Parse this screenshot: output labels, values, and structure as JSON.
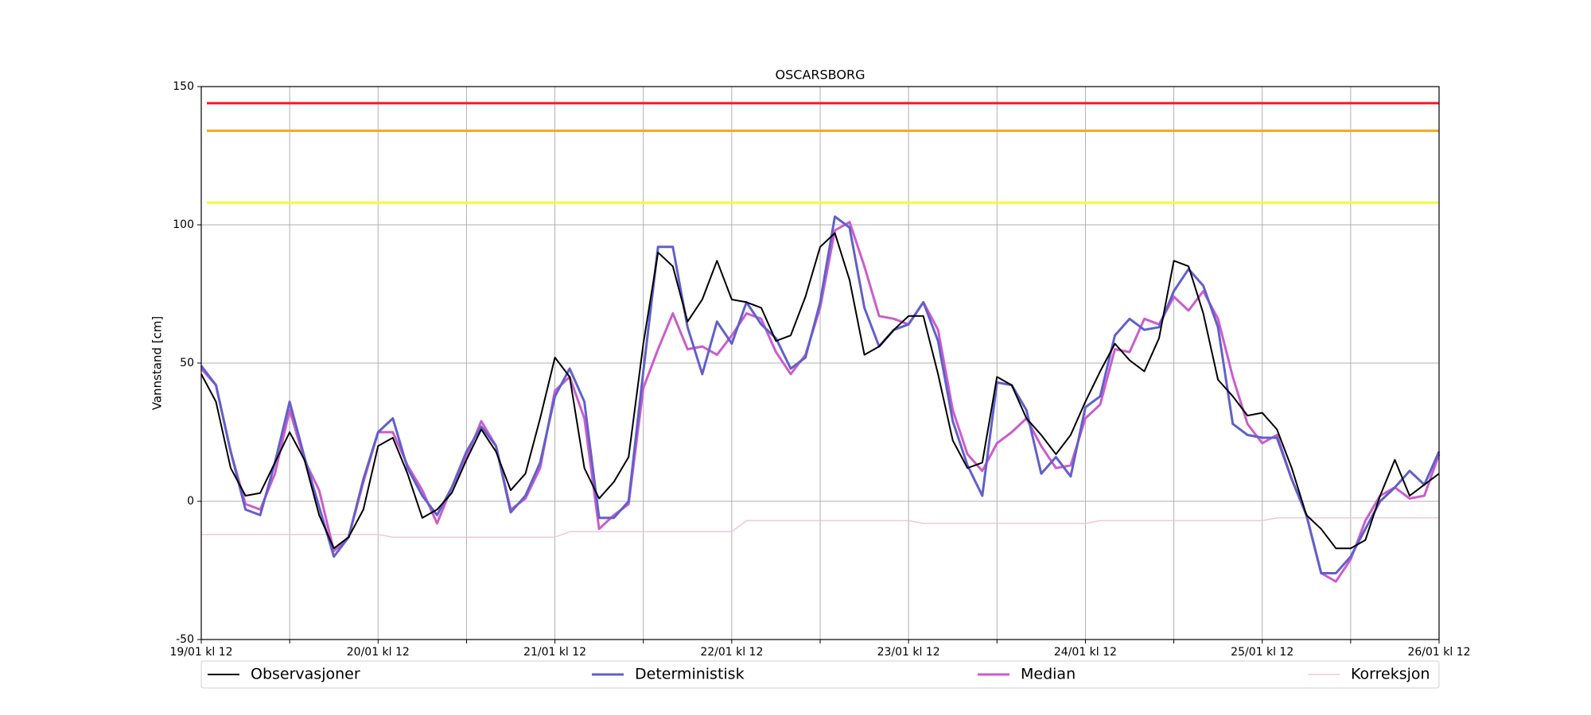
{
  "chart_data": {
    "type": "line",
    "title": "OSCARSBORG",
    "ylabel": "Vannstand [cm]",
    "x": [
      "19/01 kl 12",
      "19/01 kl 14",
      "19/01 kl 16",
      "19/01 kl 18",
      "19/01 kl 20",
      "19/01 kl 22",
      "20/01 kl 00",
      "20/01 kl 02",
      "20/01 kl 04",
      "20/01 kl 06",
      "20/01 kl 08",
      "20/01 kl 10",
      "20/01 kl 12",
      "20/01 kl 14",
      "20/01 kl 16",
      "20/01 kl 18",
      "20/01 kl 20",
      "20/01 kl 22",
      "21/01 kl 00",
      "21/01 kl 02",
      "21/01 kl 04",
      "21/01 kl 06",
      "21/01 kl 08",
      "21/01 kl 10",
      "21/01 kl 12",
      "21/01 kl 14",
      "21/01 kl 16",
      "21/01 kl 18",
      "21/01 kl 20",
      "21/01 kl 22",
      "22/01 kl 00",
      "22/01 kl 02",
      "22/01 kl 04",
      "22/01 kl 06",
      "22/01 kl 08",
      "22/01 kl 10",
      "22/01 kl 12",
      "22/01 kl 14",
      "22/01 kl 16",
      "22/01 kl 18",
      "22/01 kl 20",
      "22/01 kl 22",
      "23/01 kl 00",
      "23/01 kl 02",
      "23/01 kl 04",
      "23/01 kl 06",
      "23/01 kl 08",
      "23/01 kl 10",
      "23/01 kl 12",
      "23/01 kl 14",
      "23/01 kl 16",
      "23/01 kl 18",
      "23/01 kl 20",
      "23/01 kl 22",
      "24/01 kl 00",
      "24/01 kl 02",
      "24/01 kl 04",
      "24/01 kl 06",
      "24/01 kl 08",
      "24/01 kl 10",
      "24/01 kl 12",
      "24/01 kl 14",
      "24/01 kl 16",
      "24/01 kl 18",
      "24/01 kl 20",
      "24/01 kl 22",
      "25/01 kl 00",
      "25/01 kl 02",
      "25/01 kl 04",
      "25/01 kl 06",
      "25/01 kl 08",
      "25/01 kl 10",
      "25/01 kl 12",
      "25/01 kl 14",
      "25/01 kl 16",
      "25/01 kl 18",
      "25/01 kl 20",
      "25/01 kl 22",
      "26/01 kl 00",
      "26/01 kl 02",
      "26/01 kl 04",
      "26/01 kl 06",
      "26/01 kl 08",
      "26/01 kl 10",
      "26/01 kl 12"
    ],
    "series": [
      {
        "name": "Observasjoner",
        "color": "#000000",
        "width": 2,
        "values": [
          46,
          36,
          12,
          2,
          3,
          14,
          25,
          15,
          -5,
          -17,
          -13,
          -3,
          20,
          23,
          10,
          -6,
          -3,
          3,
          15,
          26,
          18,
          4,
          10,
          30,
          52,
          45,
          12,
          1,
          7,
          16,
          57,
          90,
          85,
          65,
          73,
          87,
          73,
          72,
          70,
          58,
          60,
          74,
          92,
          97,
          80,
          53,
          56,
          62,
          67,
          67,
          46,
          22,
          12,
          14,
          45,
          42,
          30,
          24,
          17,
          24,
          36,
          47,
          57,
          51,
          47,
          59,
          87,
          85,
          68,
          44,
          38,
          31,
          32,
          26,
          12,
          -5,
          -10,
          -17,
          -17,
          -14,
          2,
          15,
          2,
          6,
          10
        ]
      },
      {
        "name": "Deterministisk",
        "color": "#6060cc",
        "width": 3,
        "values": [
          49,
          42,
          18,
          -3,
          -5,
          14,
          36,
          16,
          -2,
          -20,
          -13,
          8,
          25,
          30,
          12,
          2,
          -5,
          5,
          18,
          27,
          20,
          -4,
          2,
          14,
          38,
          48,
          36,
          -6,
          -6,
          0,
          47,
          92,
          92,
          63,
          46,
          65,
          57,
          72,
          64,
          59,
          48,
          52,
          72,
          103,
          99,
          70,
          56,
          62,
          64,
          72,
          58,
          29,
          13,
          2,
          43,
          42,
          33,
          10,
          16,
          9,
          34,
          38,
          60,
          66,
          62,
          63,
          76,
          84,
          78,
          63,
          28,
          24,
          23,
          23,
          8,
          -5,
          -26,
          -26,
          -20,
          -10,
          0,
          5,
          11,
          6,
          18
        ]
      },
      {
        "name": "Median",
        "color": "#cc5ccc",
        "width": 3,
        "values": [
          48,
          42,
          18,
          -1,
          -3,
          10,
          33,
          15,
          4,
          -18,
          -13,
          7,
          25,
          25,
          13,
          4,
          -8,
          5,
          16,
          29,
          20,
          -3,
          1,
          12,
          40,
          45,
          30,
          -10,
          -5,
          -1,
          41,
          55,
          68,
          55,
          56,
          53,
          60,
          68,
          66,
          54,
          46,
          53,
          70,
          98,
          101,
          85,
          67,
          66,
          64,
          72,
          62,
          33,
          17,
          11,
          21,
          25,
          30,
          20,
          12,
          13,
          30,
          35,
          55,
          54,
          66,
          64,
          74,
          69,
          76,
          66,
          45,
          28,
          21,
          24,
          8,
          -5,
          -26,
          -29,
          -21,
          -7,
          2,
          5,
          1,
          2,
          17
        ]
      },
      {
        "name": "Korreksjon",
        "color": "#f2c6dc",
        "width": 1.5,
        "values": [
          -12,
          -12,
          -12,
          -12,
          -12,
          -12,
          -12,
          -12,
          -12,
          -12,
          -12,
          -12,
          -12,
          -13,
          -13,
          -13,
          -13,
          -13,
          -13,
          -13,
          -13,
          -13,
          -13,
          -13,
          -13,
          -11,
          -11,
          -11,
          -11,
          -11,
          -11,
          -11,
          -11,
          -11,
          -11,
          -11,
          -11,
          -7,
          -7,
          -7,
          -7,
          -7,
          -7,
          -7,
          -7,
          -7,
          -7,
          -7,
          -7,
          -8,
          -8,
          -8,
          -8,
          -8,
          -8,
          -8,
          -8,
          -8,
          -8,
          -8,
          -8,
          -7,
          -7,
          -7,
          -7,
          -7,
          -7,
          -7,
          -7,
          -7,
          -7,
          -7,
          -7,
          -6,
          -6,
          -6,
          -6,
          -6,
          -6,
          -6,
          -6,
          -6,
          -6,
          -6,
          -6
        ]
      }
    ],
    "hlines": [
      {
        "value": 144,
        "color": "#f51b1b"
      },
      {
        "value": 134,
        "color": "#f5a623"
      },
      {
        "value": 108,
        "color": "#f7f73a"
      }
    ],
    "xlim": [
      "19/01 kl 12",
      "26/01 kl 12"
    ],
    "xticks": [
      "19/01 kl 12",
      "20/01 kl 12",
      "21/01 kl 12",
      "22/01 kl 12",
      "23/01 kl 12",
      "24/01 kl 12",
      "25/01 kl 12",
      "26/01 kl 12"
    ],
    "ylim": [
      -50,
      150
    ],
    "yticks": [
      -50,
      0,
      50,
      100,
      150
    ],
    "grid": true,
    "legend": "below"
  }
}
